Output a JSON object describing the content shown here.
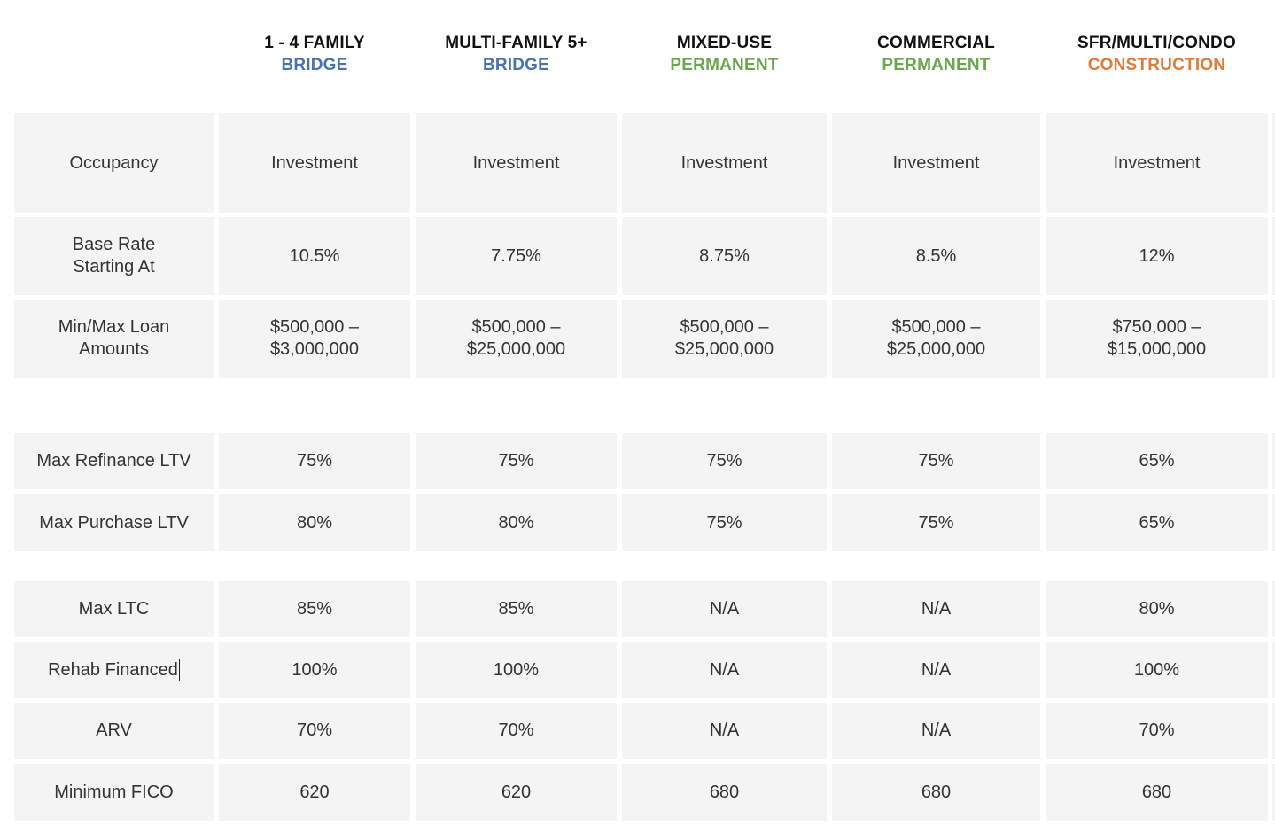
{
  "columns": [
    {
      "name": "1 - 4 FAMILY",
      "type": "BRIDGE",
      "type_color": "#4a72b0"
    },
    {
      "name": "MULTI-FAMILY 5+",
      "type": "BRIDGE",
      "type_color": "#4a72b0"
    },
    {
      "name": "MIXED-USE",
      "type": "PERMANENT",
      "type_color": "#6aa84f"
    },
    {
      "name": "COMMERCIAL",
      "type": "PERMANENT",
      "type_color": "#6aa84f"
    },
    {
      "name": "SFR/MULTI/CONDO",
      "type": "CONSTRUCTION",
      "type_color": "#e07b39"
    }
  ],
  "rows": [
    {
      "label": [
        "Occupancy"
      ],
      "values": [
        [
          "Investment"
        ],
        [
          "Investment"
        ],
        [
          "Investment"
        ],
        [
          "Investment"
        ],
        [
          "Investment"
        ]
      ]
    },
    {
      "label": [
        "Base Rate",
        "Starting At"
      ],
      "values": [
        [
          "10.5%"
        ],
        [
          "7.75%"
        ],
        [
          "8.75%"
        ],
        [
          "8.5%"
        ],
        [
          "12%"
        ]
      ]
    },
    {
      "label": [
        "Min/Max Loan",
        "Amounts"
      ],
      "values": [
        [
          "$500,000 –",
          "$3,000,000"
        ],
        [
          "$500,000 –",
          "$25,000,000"
        ],
        [
          "$500,000 –",
          "$25,000,000"
        ],
        [
          "$500,000 –",
          "$25,000,000"
        ],
        [
          "$750,000 –",
          "$15,000,000"
        ]
      ]
    },
    {
      "label": [
        "Max Refinance LTV"
      ],
      "values": [
        [
          "75%"
        ],
        [
          "75%"
        ],
        [
          "75%"
        ],
        [
          "75%"
        ],
        [
          "65%"
        ]
      ]
    },
    {
      "label": [
        "Max Purchase LTV"
      ],
      "values": [
        [
          "80%"
        ],
        [
          "80%"
        ],
        [
          "75%"
        ],
        [
          "75%"
        ],
        [
          "65%"
        ]
      ]
    },
    {
      "label": [
        "Max LTC"
      ],
      "values": [
        [
          "85%"
        ],
        [
          "85%"
        ],
        [
          "N/A"
        ],
        [
          "N/A"
        ],
        [
          "80%"
        ]
      ]
    },
    {
      "label": [
        "Rehab Financed"
      ],
      "values": [
        [
          "100%"
        ],
        [
          "100%"
        ],
        [
          "N/A"
        ],
        [
          "N/A"
        ],
        [
          "100%"
        ]
      ]
    },
    {
      "label": [
        "ARV"
      ],
      "values": [
        [
          "70%"
        ],
        [
          "70%"
        ],
        [
          "N/A"
        ],
        [
          "N/A"
        ],
        [
          "70%"
        ]
      ]
    },
    {
      "label": [
        "Minimum FICO"
      ],
      "values": [
        [
          "620"
        ],
        [
          "620"
        ],
        [
          "680"
        ],
        [
          "680"
        ],
        [
          "680"
        ]
      ]
    }
  ],
  "colors": {
    "cell_background": "#f4f4f4",
    "bridge": "#4a72b0",
    "permanent": "#6aa84f",
    "construction": "#e07b39"
  }
}
